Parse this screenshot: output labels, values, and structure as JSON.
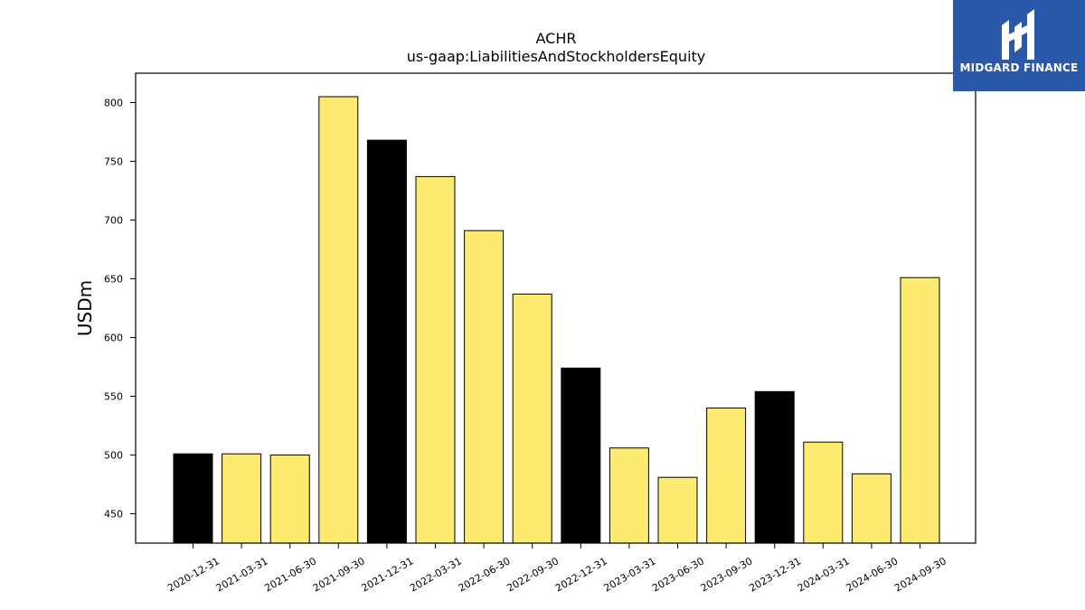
{
  "brand": {
    "name": "MIDGARD FINANCE",
    "color": "#2b58a8",
    "icon": "midgard-logo-icon"
  },
  "chart_data": {
    "type": "bar",
    "title": "ACHR",
    "subtitle": "us-gaap:LiabilitiesAndStockholdersEquity",
    "xlabel": "",
    "ylabel": "USDm",
    "ylim": [
      425,
      825
    ],
    "yticks": [
      450,
      500,
      550,
      600,
      650,
      700,
      750,
      800
    ],
    "grid": false,
    "categories": [
      "2020-12-31",
      "2021-03-31",
      "2021-06-30",
      "2021-09-30",
      "2021-12-31",
      "2022-03-31",
      "2022-06-30",
      "2022-09-30",
      "2022-12-31",
      "2023-03-31",
      "2023-06-30",
      "2023-09-30",
      "2023-12-31",
      "2024-03-31",
      "2024-06-30",
      "2024-09-30"
    ],
    "values": [
      501,
      501,
      500,
      805,
      768,
      737,
      691,
      637,
      574,
      506,
      481,
      540,
      554,
      511,
      484,
      651
    ],
    "colors": [
      "#000000",
      "#fdea71",
      "#fdea71",
      "#fdea71",
      "#000000",
      "#fdea71",
      "#fdea71",
      "#fdea71",
      "#000000",
      "#fdea71",
      "#fdea71",
      "#fdea71",
      "#000000",
      "#fdea71",
      "#fdea71",
      "#fdea71"
    ]
  }
}
